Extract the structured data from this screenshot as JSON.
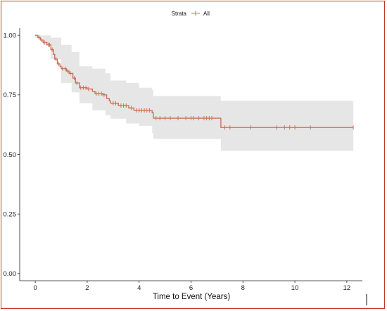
{
  "chart_data": {
    "type": "line",
    "title": "",
    "xlabel": "Time to Event (Years)",
    "ylabel": "",
    "xlim": [
      -0.6,
      12.6
    ],
    "ylim": [
      -0.03,
      1.03
    ],
    "x_ticks": [
      0,
      2,
      4,
      6,
      8,
      10,
      12
    ],
    "y_ticks": [
      0.0,
      0.25,
      0.5,
      0.75,
      1.0
    ],
    "x_tick_labels": [
      "0",
      "2",
      "4",
      "6",
      "8",
      "10",
      "12"
    ],
    "y_tick_labels": [
      "0.00",
      "0.25",
      "0.50",
      "0.75",
      "1.00"
    ],
    "grid": false,
    "legend": {
      "placement": "top-center",
      "title": "Strata",
      "entries": [
        "All"
      ]
    },
    "colors": {
      "line": "#c9735a",
      "band": "#e6e6e6",
      "frame": "#c0392b"
    },
    "series": [
      {
        "name": "All",
        "steps": [
          [
            0.0,
            1.0
          ],
          [
            0.1,
            0.99
          ],
          [
            0.2,
            0.98
          ],
          [
            0.3,
            0.97
          ],
          [
            0.45,
            0.96
          ],
          [
            0.6,
            0.94
          ],
          [
            0.7,
            0.92
          ],
          [
            0.75,
            0.9
          ],
          [
            0.85,
            0.88
          ],
          [
            0.95,
            0.87
          ],
          [
            1.0,
            0.86
          ],
          [
            1.2,
            0.85
          ],
          [
            1.3,
            0.84
          ],
          [
            1.45,
            0.82
          ],
          [
            1.55,
            0.8
          ],
          [
            1.7,
            0.78
          ],
          [
            2.0,
            0.775
          ],
          [
            2.2,
            0.765
          ],
          [
            2.3,
            0.755
          ],
          [
            2.6,
            0.75
          ],
          [
            2.75,
            0.735
          ],
          [
            2.85,
            0.725
          ],
          [
            2.9,
            0.715
          ],
          [
            3.2,
            0.705
          ],
          [
            3.6,
            0.695
          ],
          [
            3.8,
            0.685
          ],
          [
            4.5,
            0.675
          ],
          [
            4.55,
            0.652
          ],
          [
            7.1,
            0.652
          ],
          [
            7.15,
            0.613
          ],
          [
            12.25,
            0.613
          ]
        ],
        "ci_upper": [
          [
            0.0,
            1.0
          ],
          [
            0.3,
            1.0
          ],
          [
            0.6,
            0.99
          ],
          [
            1.0,
            0.96
          ],
          [
            1.4,
            0.93
          ],
          [
            1.7,
            0.87
          ],
          [
            2.2,
            0.86
          ],
          [
            2.7,
            0.84
          ],
          [
            2.9,
            0.81
          ],
          [
            3.5,
            0.8
          ],
          [
            4.0,
            0.78
          ],
          [
            4.5,
            0.77
          ],
          [
            4.55,
            0.745
          ],
          [
            7.1,
            0.745
          ],
          [
            7.15,
            0.725
          ],
          [
            12.25,
            0.725
          ]
        ],
        "ci_lower": [
          [
            0.0,
            0.99
          ],
          [
            0.3,
            0.96
          ],
          [
            0.6,
            0.9
          ],
          [
            1.0,
            0.8
          ],
          [
            1.4,
            0.76
          ],
          [
            1.7,
            0.715
          ],
          [
            2.2,
            0.685
          ],
          [
            2.7,
            0.665
          ],
          [
            2.9,
            0.65
          ],
          [
            3.5,
            0.63
          ],
          [
            4.0,
            0.62
          ],
          [
            4.5,
            0.59
          ],
          [
            4.55,
            0.565
          ],
          [
            7.1,
            0.565
          ],
          [
            7.15,
            0.515
          ],
          [
            12.25,
            0.515
          ]
        ],
        "censor_x": [
          0.15,
          0.25,
          0.35,
          0.5,
          0.55,
          0.65,
          0.8,
          0.9,
          1.05,
          1.15,
          1.25,
          1.35,
          1.5,
          1.6,
          1.75,
          1.85,
          1.95,
          2.05,
          2.35,
          2.45,
          2.55,
          2.65,
          3.0,
          3.1,
          3.3,
          3.4,
          3.5,
          3.7,
          3.9,
          4.0,
          4.1,
          4.2,
          4.3,
          4.4,
          4.65,
          4.8,
          5.0,
          5.2,
          5.5,
          5.8,
          6.0,
          6.1,
          6.3,
          6.5,
          6.6,
          6.7,
          6.8,
          7.3,
          7.5,
          8.3,
          9.3,
          9.6,
          9.8,
          10.0,
          10.6,
          12.25
        ]
      }
    ]
  }
}
